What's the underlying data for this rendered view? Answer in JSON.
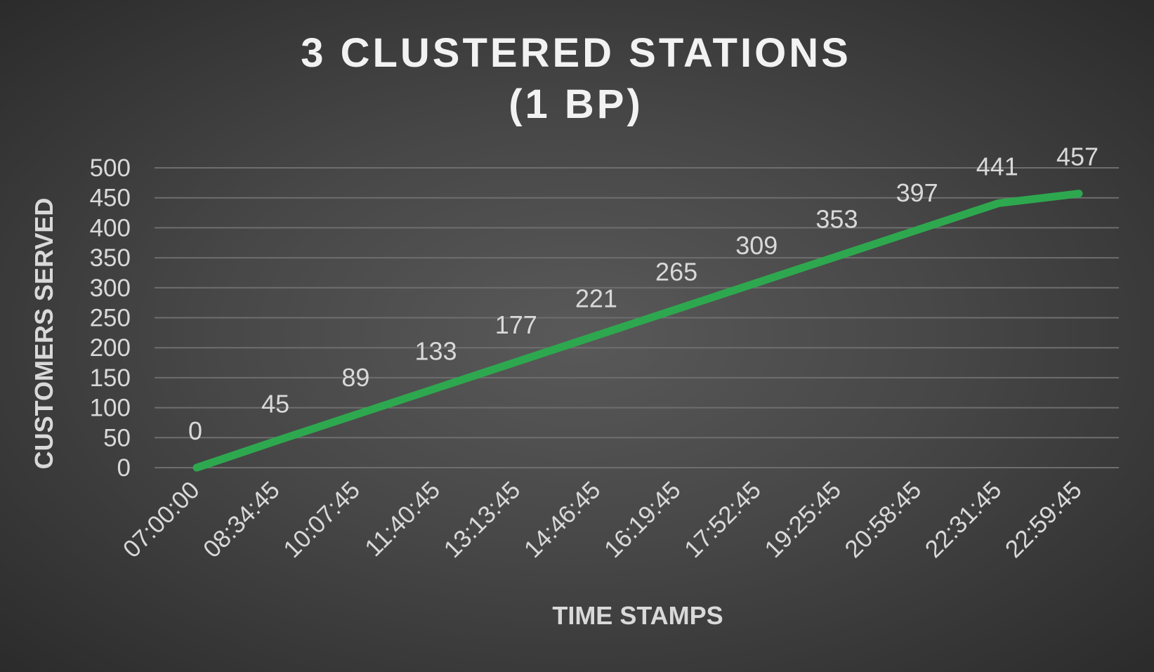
{
  "chart_data": {
    "type": "line",
    "title": [
      "3 CLUSTERED STATIONS",
      "(1 BP)"
    ],
    "xlabel": "TIME STAMPS",
    "ylabel": "CUSTOMERS SERVED",
    "categories": [
      "07:00:00",
      "08:34:45",
      "10:07:45",
      "11:40:45",
      "13:13:45",
      "14:46:45",
      "16:19:45",
      "17:52:45",
      "19:25:45",
      "20:58:45",
      "22:31:45",
      "22:59:45"
    ],
    "series": [
      {
        "values": [
          0,
          45,
          89,
          133,
          177,
          221,
          265,
          309,
          353,
          397,
          441,
          457
        ],
        "color": "#2ea84f"
      }
    ],
    "ylim": [
      0,
      500
    ],
    "yticks": [
      0,
      50,
      100,
      150,
      200,
      250,
      300,
      350,
      400,
      450,
      500
    ],
    "grid": true,
    "data_labels": true,
    "legend": "none"
  }
}
